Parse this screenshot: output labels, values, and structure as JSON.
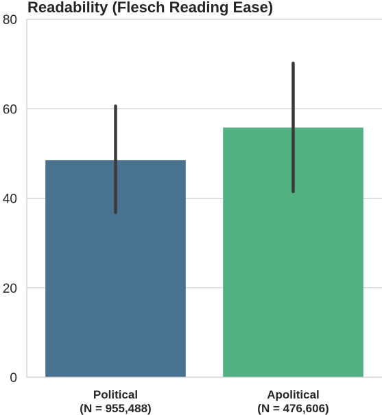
{
  "chart_data": {
    "type": "bar",
    "title": "Readability (Flesch Reading Ease)",
    "xlabel": "",
    "ylabel": "",
    "categories": [
      {
        "label": "Political",
        "n_label": "(N = 955,488)"
      },
      {
        "label": "Apolitical",
        "n_label": "(N = 476,606)"
      }
    ],
    "values": [
      48.5,
      55.8
    ],
    "error_bars": [
      {
        "low": 36.8,
        "high": 60.6
      },
      {
        "low": 41.5,
        "high": 70.2
      }
    ],
    "colors": [
      "#4a7291",
      "#52b183"
    ],
    "error_color": "#3a3a3a",
    "ylim": [
      0,
      80
    ],
    "yticks": [
      "0",
      "20",
      "40",
      "60",
      "80"
    ],
    "grid": true,
    "legend": "none"
  }
}
